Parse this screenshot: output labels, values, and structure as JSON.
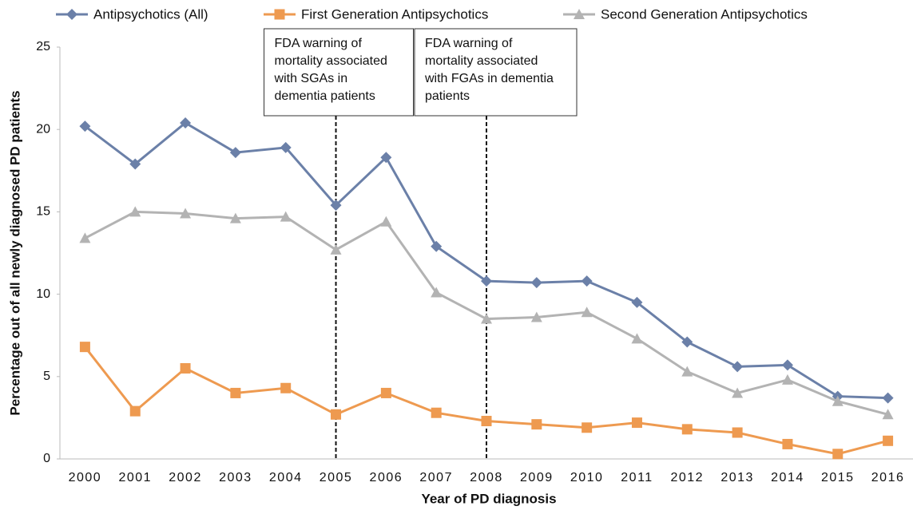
{
  "chart_data": {
    "type": "line",
    "x_label": "Year of PD diagnosis",
    "y_label": "Percentage out of all newly diagnosed PD patients",
    "categories": [
      "2000",
      "2001",
      "2002",
      "2003",
      "2004",
      "2005",
      "2006",
      "2007",
      "2008",
      "2009",
      "2010",
      "2011",
      "2012",
      "2013",
      "2014",
      "2015",
      "2016"
    ],
    "series": [
      {
        "name": "Antipsychotics (All)",
        "color": "#6b80a8",
        "marker": "diamond",
        "values": [
          20.2,
          17.9,
          20.4,
          18.6,
          18.9,
          15.4,
          18.3,
          12.9,
          10.8,
          10.7,
          10.8,
          9.5,
          7.1,
          5.6,
          5.7,
          3.8,
          3.7
        ]
      },
      {
        "name": "First Generation Antipsychotics",
        "color": "#ee9a50",
        "marker": "square",
        "values": [
          6.8,
          2.9,
          5.5,
          4.0,
          4.3,
          2.7,
          4.0,
          2.8,
          2.3,
          2.1,
          1.9,
          2.2,
          1.8,
          1.6,
          0.9,
          0.3,
          1.1
        ]
      },
      {
        "name": "Second Generation Antipsychotics",
        "color": "#b3b3b3",
        "marker": "triangle",
        "values": [
          13.4,
          15.0,
          14.9,
          14.6,
          14.7,
          12.7,
          14.4,
          10.1,
          8.5,
          8.6,
          8.9,
          7.3,
          5.3,
          4.0,
          4.8,
          3.5,
          2.7
        ]
      }
    ],
    "ylim": [
      0,
      25
    ],
    "yticks": [
      0,
      5,
      10,
      15,
      20,
      25
    ],
    "grid": false,
    "legend": "top",
    "annotations": [
      {
        "x": "2005",
        "lines": [
          "FDA warning of",
          "mortality associated",
          "with SGAs in",
          "dementia patients"
        ]
      },
      {
        "x": "2008",
        "lines": [
          "FDA warning of",
          "mortality associated",
          "with FGAs in dementia",
          "patients"
        ]
      }
    ]
  }
}
